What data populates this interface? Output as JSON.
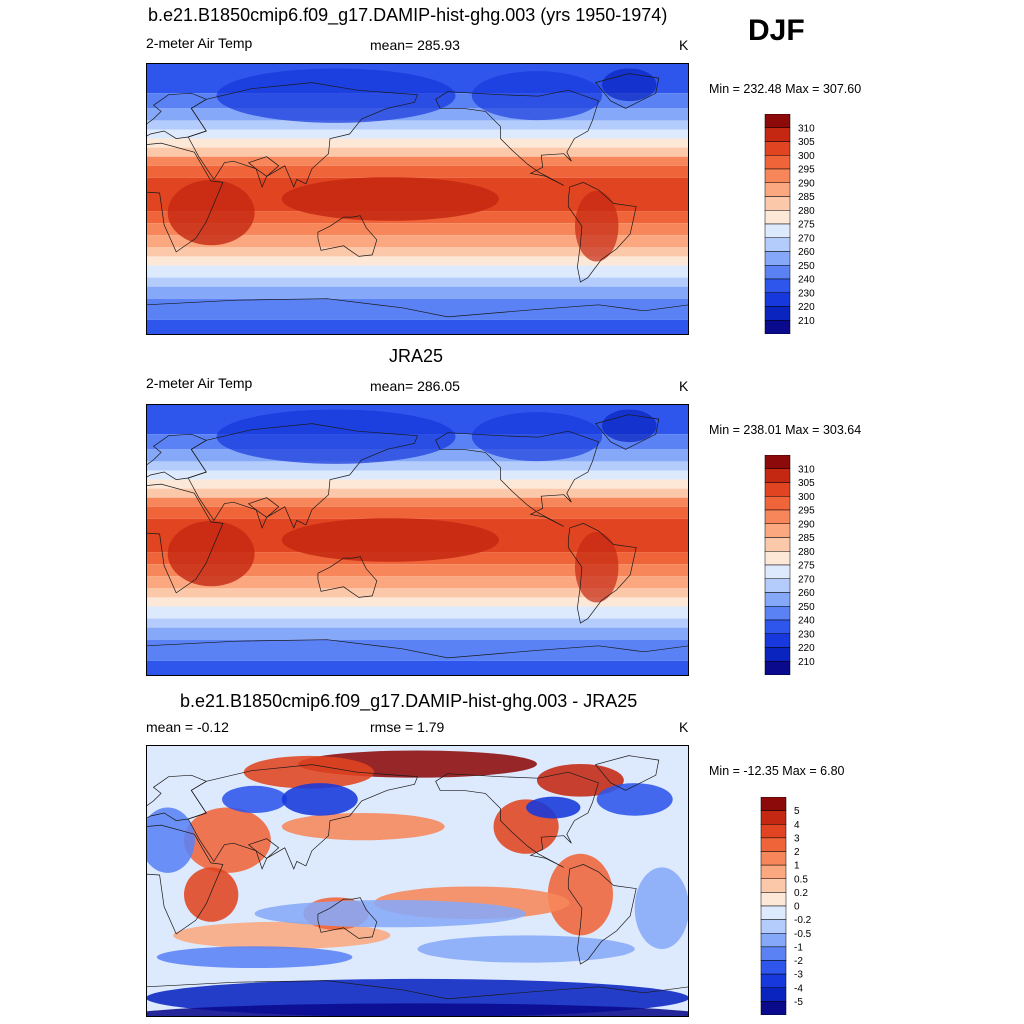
{
  "season": "DJF",
  "panels": [
    {
      "id": "model",
      "title": "b.e21.B1850cmip6.f09_g17.DAMIP-hist-ghg.003 (yrs 1950-1974)",
      "left_label": "2-meter Air Temp",
      "center_label": "mean= 285.93",
      "units": "K",
      "minmax": "Min = 232.48 Max = 307.60",
      "field": "temperature",
      "colorbar_labels": [
        "310",
        "305",
        "300",
        "295",
        "290",
        "285",
        "280",
        "275",
        "270",
        "260",
        "250",
        "240",
        "230",
        "220",
        "210"
      ]
    },
    {
      "id": "obs",
      "title": "JRA25",
      "left_label": "2-meter Air Temp",
      "center_label": "mean= 286.05",
      "units": "K",
      "minmax": "Min = 238.01 Max = 303.64",
      "field": "temperature",
      "colorbar_labels": [
        "310",
        "305",
        "300",
        "295",
        "290",
        "285",
        "280",
        "275",
        "270",
        "260",
        "250",
        "240",
        "230",
        "220",
        "210"
      ]
    },
    {
      "id": "diff",
      "title": "b.e21.B1850cmip6.f09_g17.DAMIP-hist-ghg.003 - JRA25",
      "left_label": "mean =  -0.12",
      "center_label": "rmse =   1.79",
      "units": "K",
      "minmax": "Min = -12.35 Max =   6.80",
      "field": "difference",
      "colorbar_labels": [
        "5",
        "4",
        "3",
        "2",
        "1",
        "0.5",
        "0.2",
        "0",
        "-0.2",
        "-0.5",
        "-1",
        "-2",
        "-3",
        "-4",
        "-5"
      ]
    }
  ],
  "colors": {
    "palette": [
      "#0a0a8c",
      "#0a24c0",
      "#1638dc",
      "#2e55ec",
      "#5a82f5",
      "#86a8f8",
      "#b4ccfb",
      "#dde9fd",
      "#fde8d8",
      "#fcc8aa",
      "#fba880",
      "#f7875a",
      "#f0643a",
      "#e04420",
      "#c42812",
      "#8c0a0a"
    ],
    "coast": "#1a1a1a",
    "frame": "#000000"
  }
}
